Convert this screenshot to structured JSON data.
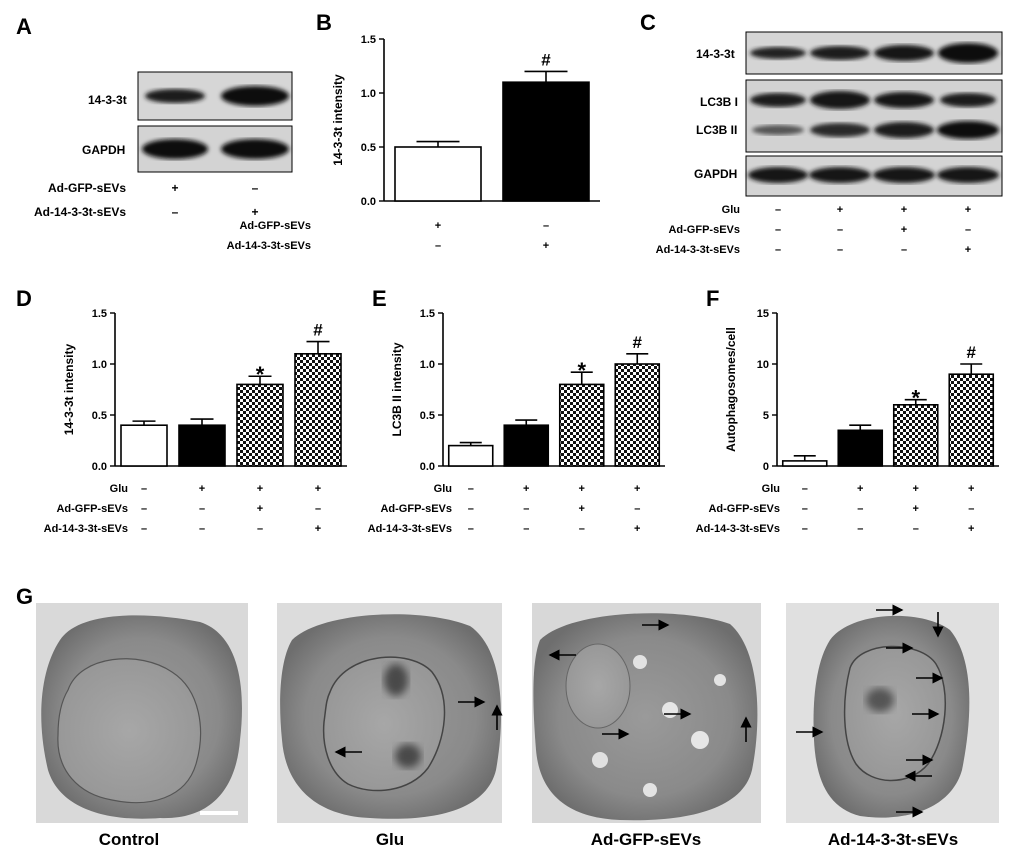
{
  "panel_letters": [
    "A",
    "B",
    "C",
    "D",
    "E",
    "F",
    "G"
  ],
  "blot_a": {
    "rows": [
      "14-3-3t",
      "GAPDH"
    ],
    "conditions": [
      {
        "name": "Ad-GFP-sEVs",
        "signs": [
          "+",
          "–"
        ]
      },
      {
        "name": "Ad-14-3-3t-sEVs",
        "signs": [
          "–",
          "+"
        ]
      }
    ]
  },
  "blot_c": {
    "rows": [
      "14-3-3t",
      "LC3B I",
      "LC3B II",
      "GAPDH"
    ],
    "conditions": [
      {
        "name": "Glu",
        "signs": [
          "–",
          "+",
          "+",
          "+"
        ]
      },
      {
        "name": "Ad-GFP-sEVs",
        "signs": [
          "–",
          "–",
          "+",
          "–"
        ]
      },
      {
        "name": "Ad-14-3-3t-sEVs",
        "signs": [
          "–",
          "–",
          "–",
          "+"
        ]
      }
    ]
  },
  "chart_data": [
    {
      "panel": "B",
      "type": "bar",
      "ylabel": "14-3-3t intensity",
      "ylim": [
        0,
        1.5
      ],
      "yticks": [
        "0.0",
        "0.5",
        "1.0",
        "1.5"
      ],
      "values": [
        0.5,
        1.1
      ],
      "errors": [
        0.05,
        0.1
      ],
      "marks": [
        "",
        "#"
      ],
      "fills": [
        "white",
        "black"
      ],
      "conditions": [
        {
          "name": "Ad-GFP-sEVs",
          "signs": [
            "+",
            "–"
          ]
        },
        {
          "name": "Ad-14-3-3t-sEVs",
          "signs": [
            "–",
            "+"
          ]
        }
      ]
    },
    {
      "panel": "D",
      "type": "bar",
      "ylabel": "14-3-3t intensity",
      "ylim": [
        0,
        1.5
      ],
      "yticks": [
        "0.0",
        "0.5",
        "1.0",
        "1.5"
      ],
      "values": [
        0.4,
        0.4,
        0.8,
        1.1
      ],
      "errors": [
        0.04,
        0.06,
        0.08,
        0.12
      ],
      "marks": [
        "",
        "",
        "*",
        "#"
      ],
      "fills": [
        "white",
        "black",
        "check",
        "check"
      ],
      "conditions": [
        {
          "name": "Glu",
          "signs": [
            "–",
            "+",
            "+",
            "+"
          ]
        },
        {
          "name": "Ad-GFP-sEVs",
          "signs": [
            "–",
            "–",
            "+",
            "–"
          ]
        },
        {
          "name": "Ad-14-3-3t-sEVs",
          "signs": [
            "–",
            "–",
            "–",
            "+"
          ]
        }
      ]
    },
    {
      "panel": "E",
      "type": "bar",
      "ylabel": "LC3B II intensity",
      "ylim": [
        0,
        1.5
      ],
      "yticks": [
        "0.0",
        "0.5",
        "1.0",
        "1.5"
      ],
      "values": [
        0.2,
        0.4,
        0.8,
        1.0
      ],
      "errors": [
        0.03,
        0.05,
        0.12,
        0.1
      ],
      "marks": [
        "",
        "",
        "*",
        "#"
      ],
      "fills": [
        "white",
        "black",
        "check",
        "check"
      ],
      "conditions": [
        {
          "name": "Glu",
          "signs": [
            "–",
            "+",
            "+",
            "+"
          ]
        },
        {
          "name": "Ad-GFP-sEVs",
          "signs": [
            "–",
            "–",
            "+",
            "–"
          ]
        },
        {
          "name": "Ad-14-3-3t-sEVs",
          "signs": [
            "–",
            "–",
            "–",
            "+"
          ]
        }
      ]
    },
    {
      "panel": "F",
      "type": "bar",
      "ylabel": "Autophagosomes/cell",
      "ylim": [
        0,
        15
      ],
      "yticks": [
        "0",
        "5",
        "10",
        "15"
      ],
      "values": [
        0.5,
        3.5,
        6.0,
        9.0
      ],
      "errors": [
        0.5,
        0.5,
        0.5,
        1.0
      ],
      "marks": [
        "",
        "",
        "*",
        "#"
      ],
      "fills": [
        "white",
        "black",
        "check",
        "check"
      ],
      "conditions": [
        {
          "name": "Glu",
          "signs": [
            "–",
            "+",
            "+",
            "+"
          ]
        },
        {
          "name": "Ad-GFP-sEVs",
          "signs": [
            "–",
            "–",
            "+",
            "–"
          ]
        },
        {
          "name": "Ad-14-3-3t-sEVs",
          "signs": [
            "–",
            "–",
            "–",
            "+"
          ]
        }
      ]
    }
  ],
  "micrographs": [
    "Control",
    "Glu",
    "Ad-GFP-sEVs",
    "Ad-14-3-3t-sEVs"
  ]
}
